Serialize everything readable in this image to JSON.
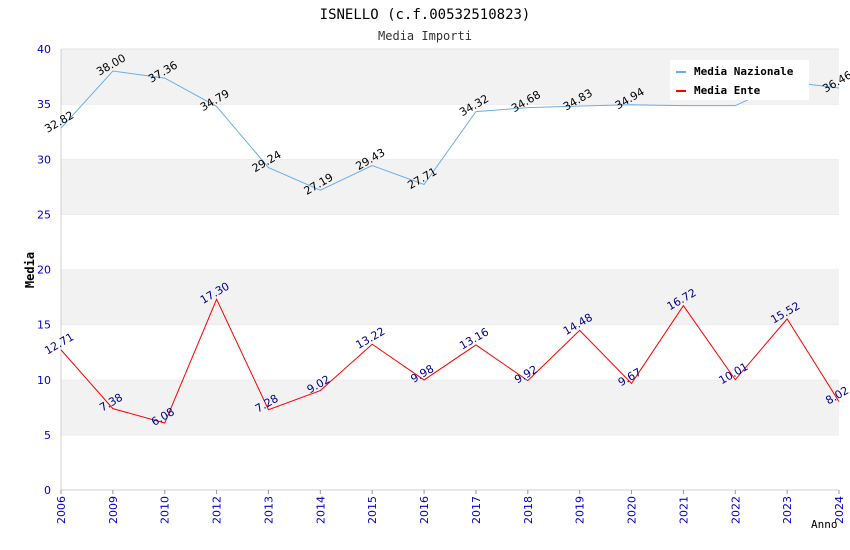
{
  "chart_data": {
    "type": "line",
    "title": "ISNELLO (c.f.00532510823)",
    "subtitle": "Media Importi",
    "xlabel": "Anno",
    "ylabel": "Media",
    "ylim": [
      0,
      40
    ],
    "yticks": [
      0,
      5,
      10,
      15,
      20,
      25,
      30,
      35,
      40
    ],
    "categories": [
      "2006",
      "2009",
      "2010",
      "2012",
      "2013",
      "2014",
      "2015",
      "2016",
      "2017",
      "2018",
      "2019",
      "2020",
      "2021",
      "2022",
      "2023",
      "2024"
    ],
    "series": [
      {
        "name": "Media Nazionale",
        "color": "#6aaee6",
        "label_color": "#000000",
        "values": [
          32.82,
          38.0,
          37.36,
          34.79,
          29.24,
          27.19,
          29.43,
          27.71,
          34.32,
          34.68,
          34.83,
          34.94,
          34.86,
          34.86,
          37.04,
          36.46
        ],
        "labels": [
          "32.82",
          "38.00",
          "37.36",
          "34.79",
          "29.24",
          "27.19",
          "29.43",
          "27.71",
          "34.32",
          "34.68",
          "34.83",
          "34.94",
          "",
          "",
          "",
          "36.46"
        ]
      },
      {
        "name": "Media Ente",
        "color": "#ff0000",
        "label_color": "#00008b",
        "values": [
          12.71,
          7.38,
          6.08,
          17.3,
          7.28,
          9.02,
          13.22,
          9.98,
          13.16,
          9.92,
          14.48,
          9.67,
          16.72,
          10.01,
          15.52,
          8.02
        ],
        "labels": [
          "12.71",
          "7.38",
          "6.08",
          "17.30",
          "7.28",
          "9.02",
          "13.22",
          "9.98",
          "13.16",
          "9.92",
          "14.48",
          "9.67",
          "16.72",
          "10.01",
          "15.52",
          "8.02"
        ]
      }
    ],
    "grid": true,
    "legend": "top-right"
  }
}
